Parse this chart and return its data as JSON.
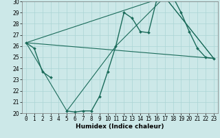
{
  "xlabel": "Humidex (Indice chaleur)",
  "xlim": [
    -0.5,
    23.5
  ],
  "ylim": [
    20,
    30
  ],
  "xticks": [
    0,
    1,
    2,
    3,
    4,
    5,
    6,
    7,
    8,
    9,
    10,
    11,
    12,
    13,
    14,
    15,
    16,
    17,
    18,
    19,
    20,
    21,
    22,
    23
  ],
  "yticks": [
    20,
    21,
    22,
    23,
    24,
    25,
    26,
    27,
    28,
    29,
    30
  ],
  "bg_color": "#cce8e8",
  "line_color": "#1a6b5a",
  "main_line": {
    "x": [
      0,
      1,
      2,
      3,
      4,
      5,
      6,
      7,
      8,
      9,
      10,
      11,
      12,
      13,
      14,
      15,
      16,
      17,
      18,
      19,
      20,
      21,
      22,
      23
    ],
    "y": [
      26.3,
      25.8,
      23.7,
      23.2,
      null,
      20.2,
      20.1,
      20.2,
      20.2,
      21.5,
      23.7,
      26.0,
      29.0,
      28.5,
      27.3,
      27.2,
      30.1,
      30.4,
      30.4,
      29.0,
      27.3,
      25.8,
      25.0,
      24.9
    ]
  },
  "straight_lines": [
    {
      "x": [
        0,
        23
      ],
      "y": [
        26.3,
        24.9
      ]
    },
    {
      "x": [
        0,
        17,
        23
      ],
      "y": [
        26.3,
        30.4,
        24.9
      ]
    },
    {
      "x": [
        0,
        5,
        11,
        17,
        23
      ],
      "y": [
        26.3,
        20.2,
        26.0,
        30.4,
        24.9
      ]
    }
  ],
  "grid_color": "#aad4d4",
  "tick_fontsize": 5.5,
  "xlabel_fontsize": 6.5
}
